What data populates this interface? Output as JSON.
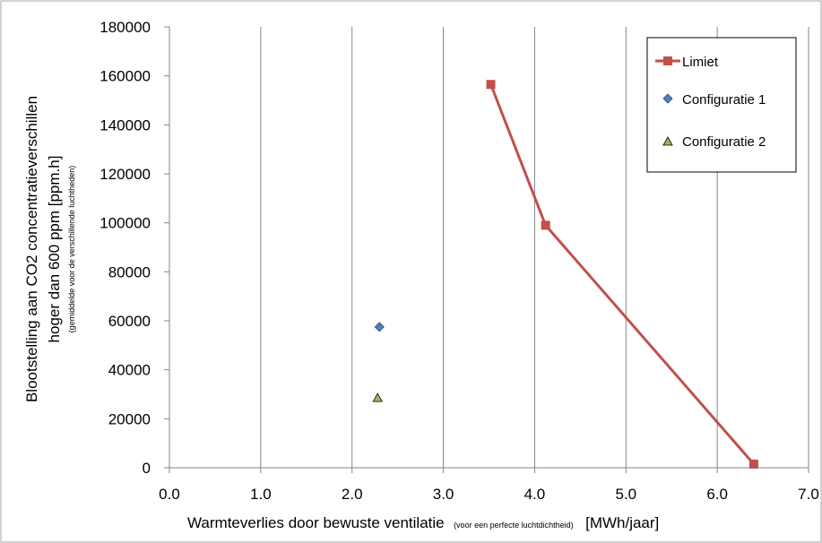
{
  "chart_data": {
    "type": "scatter",
    "xlim": [
      0.0,
      7.0
    ],
    "ylim": [
      0,
      180000
    ],
    "x_ticks": [
      "0.0",
      "1.0",
      "2.0",
      "3.0",
      "4.0",
      "5.0",
      "6.0",
      "7.0"
    ],
    "y_ticks": [
      "0",
      "20000",
      "40000",
      "60000",
      "80000",
      "100000",
      "120000",
      "140000",
      "160000",
      "180000"
    ],
    "grid": "vertical gridlines",
    "legend_position": "top-right",
    "xlabel": {
      "main": "Warmteverlies  door bewuste ventilatie",
      "note": "(voor een perfecte luchtdichtheid)",
      "unit": "[MWh/jaar]"
    },
    "ylabel": {
      "line1": "Blootstelling aan CO2 concentratieverschillen",
      "line2": "hoger dan 600 ppm [ppm.h]",
      "line3": "(gemiddelde  voor de verschillende  luchtheden)"
    },
    "series": [
      {
        "name": "Limiet",
        "kind": "line-markers",
        "marker": "square",
        "color": "#C0504D",
        "points": [
          [
            3.52,
            156500
          ],
          [
            4.12,
            99000
          ],
          [
            6.4,
            1500
          ]
        ]
      },
      {
        "name": "Configuratie 1",
        "kind": "markers",
        "marker": "diamond",
        "color": "#4F81BD",
        "points": [
          [
            2.3,
            57500
          ]
        ]
      },
      {
        "name": "Configuratie 2",
        "kind": "markers",
        "marker": "triangle",
        "color": "#9BBB59",
        "points": [
          [
            2.28,
            28500
          ]
        ]
      }
    ]
  }
}
